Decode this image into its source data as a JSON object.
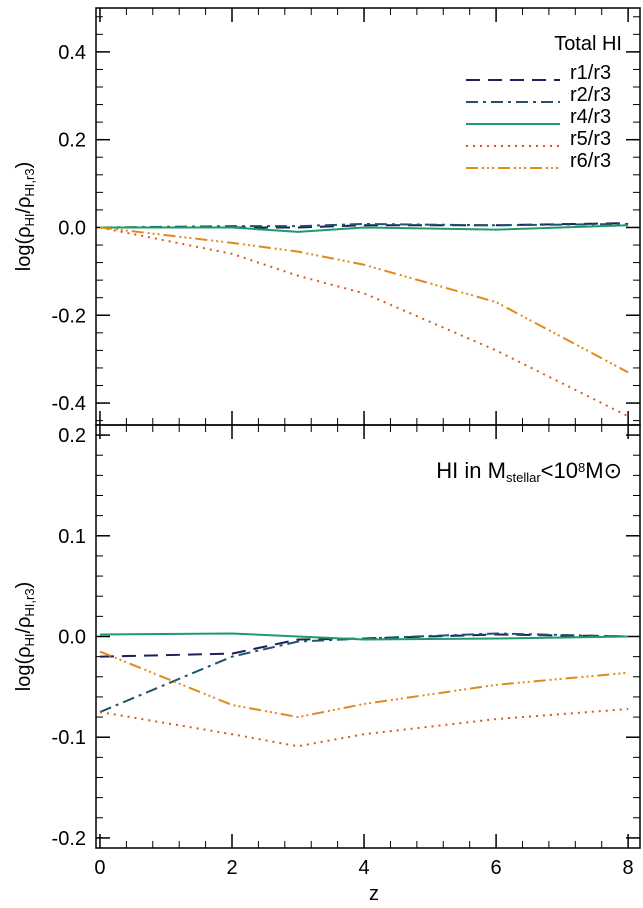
{
  "chart_data": [
    {
      "type": "line",
      "title": "Total HI",
      "ylabel_parts": [
        "log(ρ",
        "HI",
        "/ρ",
        "HI,r3",
        ")"
      ],
      "x": [
        0,
        2,
        3,
        4,
        6,
        8
      ],
      "xlim": [
        -0.06,
        8.18
      ],
      "xticks": [
        0,
        2,
        4,
        6,
        8
      ],
      "ylim": [
        -0.45,
        0.5
      ],
      "yticks": [
        -0.4,
        -0.2,
        {
          "value": 0,
          "label": "0.0"
        },
        0.2,
        0.4
      ],
      "legend": "upper right",
      "series": [
        {
          "name": "r1/r3",
          "color": "#1b1f5a",
          "style": "dashed",
          "values": [
            0,
            0,
            0,
            0.005,
            0.005,
            0.01
          ]
        },
        {
          "name": "r2/r3",
          "color": "#1f536e",
          "style": "dashdot",
          "values": [
            0,
            0.003,
            0.003,
            0.008,
            0.005,
            0.008
          ]
        },
        {
          "name": "r4/r3",
          "color": "#1f9a6a",
          "style": "solid",
          "values": [
            0,
            0,
            -0.01,
            0,
            -0.005,
            0.005
          ]
        },
        {
          "name": "r5/r3",
          "color": "#d85a1a",
          "style": "dotted",
          "values": [
            0,
            -0.06,
            -0.11,
            -0.15,
            -0.28,
            -0.43
          ]
        },
        {
          "name": "r6/r3",
          "color": "#e08a1a",
          "style": "dashdotdotdot",
          "values": [
            0,
            -0.035,
            -0.055,
            -0.085,
            -0.17,
            -0.33
          ]
        }
      ]
    },
    {
      "type": "line",
      "title_parts": [
        "HI in M",
        "stellar",
        "<10",
        "8",
        "M",
        "⊙"
      ],
      "ylabel_parts": [
        "log(ρ",
        "HI",
        "/ρ",
        "HI,r3",
        ")"
      ],
      "xlabel": "z",
      "x": [
        0,
        2,
        3,
        4,
        6,
        8
      ],
      "xlim": [
        -0.06,
        8.18
      ],
      "xticks": [
        0,
        2,
        4,
        6,
        8
      ],
      "ylim": [
        -0.21,
        0.21
      ],
      "yticks": [
        -0.2,
        -0.1,
        {
          "value": 0,
          "label": "0.0"
        },
        0.1,
        0.2
      ],
      "series": [
        {
          "color": "#1b1f5a",
          "style": "dashed",
          "values": [
            -0.02,
            -0.017,
            -0.003,
            -0.002,
            0.002,
            0
          ]
        },
        {
          "color": "#1f536e",
          "style": "dashdot",
          "values": [
            -0.075,
            -0.02,
            -0.005,
            -0.002,
            0.003,
            0
          ]
        },
        {
          "color": "#1f9a6a",
          "style": "solid",
          "values": [
            0.002,
            0.003,
            0,
            -0.003,
            -0.002,
            0
          ]
        },
        {
          "color": "#d85a1a",
          "style": "dotted",
          "values": [
            -0.075,
            -0.097,
            -0.109,
            -0.097,
            -0.082,
            -0.072
          ]
        },
        {
          "color": "#e08a1a",
          "style": "dashdotdotdot",
          "values": [
            -0.015,
            -0.068,
            -0.08,
            -0.067,
            -0.048,
            -0.036
          ]
        }
      ]
    }
  ]
}
